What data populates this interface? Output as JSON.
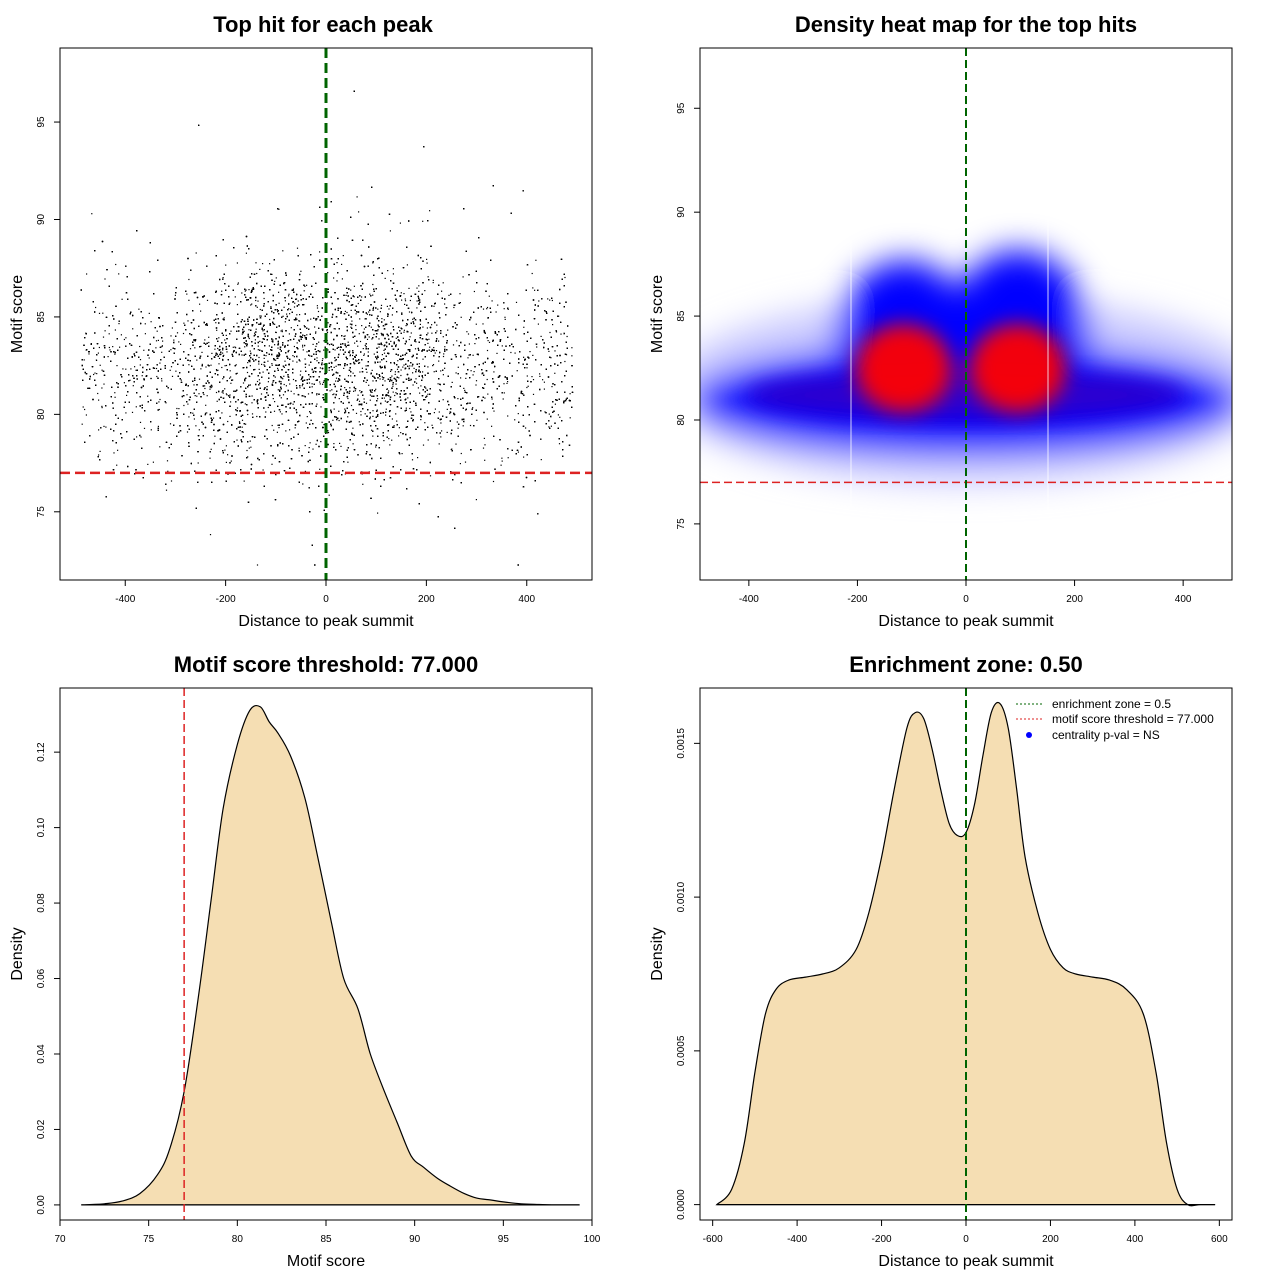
{
  "chart_data": [
    {
      "type": "scatter",
      "title": "Top hit for each peak",
      "xlabel": "Distance to peak summit",
      "ylabel": "Motif score",
      "xlim": [
        -530,
        530
      ],
      "ylim": [
        71.5,
        98.8
      ],
      "xticks": [
        -400,
        -200,
        0,
        200,
        400
      ],
      "yticks": [
        75,
        80,
        85,
        90,
        95
      ],
      "vline": {
        "x": 0,
        "color": "#006400",
        "style": "dashed"
      },
      "hline": {
        "y": 77,
        "color": "#dd2222",
        "style": "dashed"
      },
      "point_distribution": {
        "n_points": 12000,
        "x_range": [
          -490,
          490
        ],
        "y_bulk": [
          77,
          89
        ],
        "y_outliers": [
          72.3,
          98
        ],
        "modes_x": [
          -120,
          100
        ],
        "mode_y": 83
      }
    },
    {
      "type": "heatmap",
      "title": "Density heat map for the top hits",
      "xlabel": "Distance to peak summit",
      "ylabel": "Motif score",
      "xlim": [
        -490,
        490
      ],
      "ylim": [
        72.3,
        97.9
      ],
      "xticks": [
        -400,
        -200,
        0,
        200,
        400
      ],
      "yticks": [
        75,
        80,
        85,
        90,
        95
      ],
      "vline": {
        "x": 0,
        "color": "#006400",
        "style": "dashed"
      },
      "hline": {
        "y": 77,
        "color": "#dd2222",
        "style": "dashed"
      },
      "color_scale": [
        "#ffffff",
        "#0000ff",
        "#ff0000"
      ],
      "hotspots": [
        {
          "x": -115,
          "y": 82.5
        },
        {
          "x": 95,
          "y": 82.5
        }
      ]
    },
    {
      "type": "area",
      "title": "Motif score threshold: 77.000",
      "xlabel": "Motif score",
      "ylabel": "Density",
      "xlim": [
        70,
        100
      ],
      "ylim": [
        -0.004,
        0.137
      ],
      "xticks": [
        70,
        75,
        80,
        85,
        90,
        95,
        100
      ],
      "yticks": [
        0.0,
        0.02,
        0.04,
        0.06,
        0.08,
        0.1,
        0.12
      ],
      "ytick_labels": [
        "0.00",
        "0.02",
        "0.04",
        "0.06",
        "0.08",
        "0.10",
        "0.12"
      ],
      "vline": {
        "x": 77,
        "color": "#dd2222",
        "style": "dashed"
      },
      "fill": "#f5deb3",
      "x": [
        71.2,
        72.5,
        73.5,
        74.5,
        75.5,
        76.2,
        77,
        77.8,
        78.5,
        79.2,
        80,
        80.7,
        81.3,
        81.8,
        82.3,
        83,
        83.8,
        84.5,
        85.3,
        86,
        86.8,
        87.5,
        88.3,
        89,
        89.8,
        90.5,
        91.3,
        92,
        92.8,
        93.5,
        94.3,
        95,
        96,
        97,
        98,
        99.3
      ],
      "y": [
        0.0,
        0.0003,
        0.001,
        0.003,
        0.008,
        0.015,
        0.03,
        0.055,
        0.08,
        0.105,
        0.122,
        0.131,
        0.132,
        0.128,
        0.125,
        0.119,
        0.108,
        0.093,
        0.075,
        0.06,
        0.052,
        0.04,
        0.03,
        0.022,
        0.013,
        0.01,
        0.007,
        0.005,
        0.003,
        0.0018,
        0.0013,
        0.0008,
        0.0003,
        0.0001,
        0.0,
        0.0
      ]
    },
    {
      "type": "area",
      "title": "Enrichment zone: 0.50",
      "xlabel": "Distance to peak summit",
      "ylabel": "Density",
      "xlim": [
        -630,
        630
      ],
      "ylim": [
        -5e-05,
        0.00168
      ],
      "xticks": [
        -600,
        -400,
        -200,
        0,
        200,
        400,
        600
      ],
      "yticks": [
        0.0,
        0.0005,
        0.001,
        0.0015
      ],
      "ytick_labels": [
        "0.0000",
        "0.0005",
        "0.0010",
        "0.0015"
      ],
      "vline": {
        "x": 0,
        "color": "#006400",
        "style": "dashed"
      },
      "fill": "#f5deb3",
      "x": [
        -590,
        -555,
        -525,
        -500,
        -475,
        -450,
        -420,
        -380,
        -340,
        -300,
        -260,
        -230,
        -200,
        -170,
        -140,
        -120,
        -100,
        -80,
        -60,
        -40,
        -20,
        0,
        20,
        40,
        60,
        80,
        100,
        120,
        140,
        170,
        200,
        230,
        260,
        300,
        340,
        380,
        420,
        450,
        475,
        500,
        525,
        555,
        590
      ],
      "y": [
        0.0,
        5e-05,
        0.0002,
        0.00043,
        0.00062,
        0.0007,
        0.00073,
        0.00074,
        0.00075,
        0.00077,
        0.00083,
        0.00095,
        0.00113,
        0.00135,
        0.00155,
        0.0016,
        0.00158,
        0.00148,
        0.00135,
        0.00124,
        0.0012,
        0.00121,
        0.0013,
        0.00146,
        0.0016,
        0.00163,
        0.00155,
        0.00135,
        0.00113,
        0.00095,
        0.00083,
        0.00077,
        0.00075,
        0.00074,
        0.00073,
        0.0007,
        0.00062,
        0.00043,
        0.0002,
        5e-05,
        0.0,
        0.0,
        0.0
      ],
      "legend": {
        "placement": "top-right",
        "entries": [
          {
            "label": "enrichment zone = 0.5",
            "color": "#006400",
            "style": "dotted"
          },
          {
            "label": "motif score threshold = 77.000",
            "color": "#dd2222",
            "style": "dotted"
          },
          {
            "label": "centrality p-val = NS",
            "color": "#0000ff",
            "style": "point"
          }
        ]
      }
    }
  ]
}
